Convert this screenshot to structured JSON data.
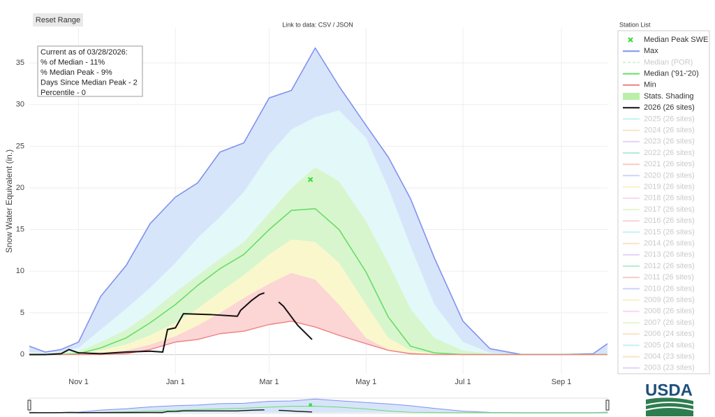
{
  "chart_data": {
    "type": "area",
    "reset_button": "Reset Range",
    "link_text": "Link to data: CSV / JSON",
    "legend_title": "Station List",
    "logo": "USDA",
    "ylabel": "Snow Water Equivalent (in.)",
    "annotation": [
      "Current as of 03/28/2026:",
      "% of Median - 11%",
      "% Median Peak - 9%",
      "Days Since Median Peak - 2",
      "Percentile - 0"
    ],
    "xlim": [
      0,
      364
    ],
    "xticks": [
      {
        "value": 31,
        "label": "Nov 1"
      },
      {
        "value": 92,
        "label": "Jan 1"
      },
      {
        "value": 151,
        "label": "Mar 1"
      },
      {
        "value": 212,
        "label": "May 1"
      },
      {
        "value": 273,
        "label": "Jul 1"
      },
      {
        "value": 335,
        "label": "Sep 1"
      }
    ],
    "ylim": [
      -2.3,
      39.2
    ],
    "yticks": [
      0,
      5,
      10,
      15,
      20,
      25,
      30,
      35
    ],
    "grid": true,
    "x": [
      0,
      10,
      20,
      31,
      45,
      61,
      76,
      92,
      106,
      120,
      135,
      151,
      165,
      180,
      195,
      212,
      226,
      240,
      255,
      273,
      290,
      310,
      335,
      355,
      364
    ],
    "median_peak": {
      "name": "Median Peak SWE",
      "color": "#33dd33",
      "x": 177,
      "value": 21
    },
    "series": [
      {
        "name": "Max",
        "color": "#8191ee",
        "values": [
          1.0,
          0.3,
          0.6,
          1.5,
          7.0,
          10.7,
          15.7,
          18.9,
          20.6,
          24.3,
          25.4,
          30.8,
          31.7,
          36.8,
          32.2,
          27.5,
          23.7,
          18.7,
          11.6,
          4.0,
          0.7,
          0,
          0,
          0.1,
          1.3
        ]
      },
      {
        "name": "Median ('91-'20)",
        "color": "#66dd66",
        "values": [
          0,
          0,
          0,
          0.1,
          0.8,
          2.0,
          3.8,
          6.0,
          8.3,
          10.3,
          12.0,
          15.0,
          17.3,
          17.5,
          15.0,
          9.9,
          4.5,
          1.0,
          0.2,
          0,
          0,
          0,
          0,
          0,
          0
        ]
      },
      {
        "name": "Min",
        "color": "#f08080",
        "values": [
          0,
          0,
          0,
          0,
          0,
          0.1,
          0.6,
          1.5,
          1.8,
          2.5,
          2.8,
          3.6,
          4.0,
          3.3,
          2.3,
          1.3,
          0.5,
          0.1,
          0,
          0,
          0,
          0,
          0,
          0,
          0
        ]
      },
      {
        "name": "2026 (26 sites)",
        "color": "#111111",
        "x": [
          0,
          10,
          20,
          25,
          31,
          45,
          61,
          76,
          84,
          87,
          92,
          97,
          114,
          131,
          133,
          140,
          145,
          148,
          151,
          157,
          160,
          169,
          178
        ],
        "values": [
          0,
          0,
          0.1,
          0.6,
          0.2,
          0.1,
          0.3,
          0.4,
          0.3,
          3.0,
          3.2,
          4.9,
          4.8,
          4.6,
          5.3,
          6.5,
          7.2,
          7.4,
          null,
          6.3,
          5.8,
          3.5,
          1.8
        ]
      }
    ],
    "shading": {
      "name": "Stats. Shading",
      "color": "#b8f0a8",
      "band_colors": [
        "#fcd5d5",
        "#fbf7cc",
        "#d8f6cd",
        "#e3f8f9",
        "#d7e5fb"
      ],
      "levels": [
        [
          0,
          0,
          0,
          0,
          0.2,
          0.5,
          1.2,
          2.2,
          3.5,
          5.0,
          6.8,
          8.5,
          9.8,
          9.0,
          6.0,
          2.0,
          0.6,
          0.2,
          0,
          0,
          0,
          0,
          0,
          0,
          0
        ],
        [
          0,
          0,
          0,
          0.1,
          0.5,
          1.2,
          2.3,
          3.8,
          5.5,
          7.5,
          9.5,
          12.0,
          13.8,
          13.5,
          11.0,
          6.0,
          2.0,
          0.5,
          0.1,
          0,
          0,
          0,
          0,
          0,
          0
        ],
        [
          0.1,
          0.1,
          0.2,
          0.4,
          1.5,
          3.0,
          5.0,
          7.5,
          9.5,
          11.5,
          13.5,
          17.0,
          20.0,
          22.5,
          20.8,
          16.0,
          11.0,
          5.5,
          2.0,
          0.5,
          0.1,
          0,
          0,
          0,
          0
        ],
        [
          0.3,
          0.2,
          0.3,
          0.8,
          3.0,
          5.5,
          8.0,
          11.0,
          14.0,
          16.5,
          19.5,
          24.0,
          27.0,
          28.5,
          29.3,
          26.0,
          20.0,
          13.0,
          6.0,
          1.5,
          0.2,
          0,
          0,
          0,
          0
        ]
      ]
    },
    "median_por": {
      "name": "Median (POR)",
      "color": "#9be59b"
    },
    "hidden_series": [
      {
        "name": "2025 (26 sites)",
        "color": "#7fdcec"
      },
      {
        "name": "2024 (26 sites)",
        "color": "#f5c08a"
      },
      {
        "name": "2023 (26 sites)",
        "color": "#c49af0"
      },
      {
        "name": "2022 (26 sites)",
        "color": "#5fd6a0"
      },
      {
        "name": "2021 (26 sites)",
        "color": "#f08a8a"
      },
      {
        "name": "2020 (26 sites)",
        "color": "#8f9cf0"
      },
      {
        "name": "2019 (26 sites)",
        "color": "#f5dd8a"
      },
      {
        "name": "2018 (26 sites)",
        "color": "#f5a8e0"
      },
      {
        "name": "2017 (26 sites)",
        "color": "#c8ec9a"
      },
      {
        "name": "2016 (26 sites)",
        "color": "#f5a0a0"
      },
      {
        "name": "2015 (26 sites)",
        "color": "#7fdcec"
      },
      {
        "name": "2014 (26 sites)",
        "color": "#f5c08a"
      },
      {
        "name": "2013 (26 sites)",
        "color": "#c49af0"
      },
      {
        "name": "2012 (26 sites)",
        "color": "#5fd6a0"
      },
      {
        "name": "2011 (26 sites)",
        "color": "#f08a8a"
      },
      {
        "name": "2010 (26 sites)",
        "color": "#8f9cf0"
      },
      {
        "name": "2009 (26 sites)",
        "color": "#f5dd8a"
      },
      {
        "name": "2008 (26 sites)",
        "color": "#f5a8e0"
      },
      {
        "name": "2007 (26 sites)",
        "color": "#c8ec9a"
      },
      {
        "name": "2006 (24 sites)",
        "color": "#f5c08a"
      },
      {
        "name": "2005 (24 sites)",
        "color": "#7fdcec"
      },
      {
        "name": "2004 (23 sites)",
        "color": "#f5c08a"
      },
      {
        "name": "2003 (23 sites)",
        "color": "#c49af0"
      }
    ]
  }
}
